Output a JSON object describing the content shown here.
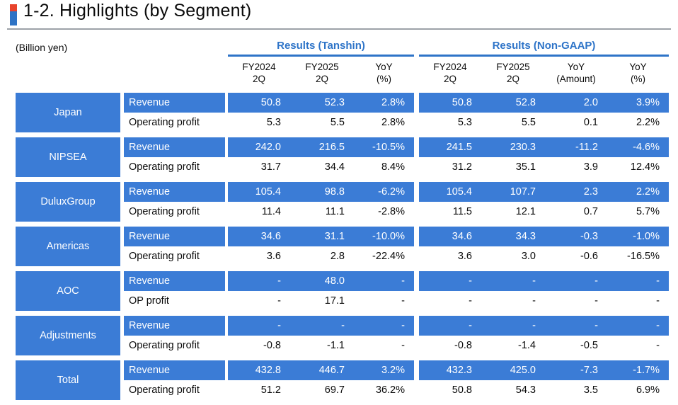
{
  "page": {
    "title": "1-2. Highlights (by Segment)",
    "unit_label": "(Billion yen)"
  },
  "colors": {
    "accent_blue": "#3B7CD6",
    "header_blue": "#2E74C8",
    "marker_red": "#E8432C",
    "marker_blue": "#2E73C5",
    "divider_gray": "#9DA2A8"
  },
  "table": {
    "groups": [
      {
        "id": "tanshin",
        "label": "Results (Tanshin)",
        "columns": [
          {
            "line1": "FY2024",
            "line2": "2Q"
          },
          {
            "line1": "FY2025",
            "line2": "2Q"
          },
          {
            "line1": "YoY",
            "line2": "(%)"
          }
        ]
      },
      {
        "id": "nongaap",
        "label": "Results (Non-GAAP)",
        "columns": [
          {
            "line1": "FY2024",
            "line2": "2Q"
          },
          {
            "line1": "FY2025",
            "line2": "2Q"
          },
          {
            "line1": "YoY",
            "line2": "(Amount)"
          },
          {
            "line1": "YoY",
            "line2": "(%)"
          }
        ]
      }
    ],
    "segments": [
      {
        "name": "Japan",
        "rows": [
          {
            "label": "Revenue",
            "highlight": true,
            "tanshin": [
              "50.8",
              "52.3",
              "2.8%"
            ],
            "nongaap": [
              "50.8",
              "52.8",
              "2.0",
              "3.9%"
            ]
          },
          {
            "label": "Operating profit",
            "highlight": false,
            "tanshin": [
              "5.3",
              "5.5",
              "2.8%"
            ],
            "nongaap": [
              "5.3",
              "5.5",
              "0.1",
              "2.2%"
            ]
          }
        ]
      },
      {
        "name": "NIPSEA",
        "rows": [
          {
            "label": "Revenue",
            "highlight": true,
            "tanshin": [
              "242.0",
              "216.5",
              "-10.5%"
            ],
            "nongaap": [
              "241.5",
              "230.3",
              "-11.2",
              "-4.6%"
            ]
          },
          {
            "label": "Operating profit",
            "highlight": false,
            "tanshin": [
              "31.7",
              "34.4",
              "8.4%"
            ],
            "nongaap": [
              "31.2",
              "35.1",
              "3.9",
              "12.4%"
            ]
          }
        ]
      },
      {
        "name": "DuluxGroup",
        "rows": [
          {
            "label": "Revenue",
            "highlight": true,
            "tanshin": [
              "105.4",
              "98.8",
              "-6.2%"
            ],
            "nongaap": [
              "105.4",
              "107.7",
              "2.3",
              "2.2%"
            ]
          },
          {
            "label": "Operating profit",
            "highlight": false,
            "tanshin": [
              "11.4",
              "11.1",
              "-2.8%"
            ],
            "nongaap": [
              "11.5",
              "12.1",
              "0.7",
              "5.7%"
            ]
          }
        ]
      },
      {
        "name": "Americas",
        "rows": [
          {
            "label": "Revenue",
            "highlight": true,
            "tanshin": [
              "34.6",
              "31.1",
              "-10.0%"
            ],
            "nongaap": [
              "34.6",
              "34.3",
              "-0.3",
              "-1.0%"
            ]
          },
          {
            "label": "Operating profit",
            "highlight": false,
            "tanshin": [
              "3.6",
              "2.8",
              "-22.4%"
            ],
            "nongaap": [
              "3.6",
              "3.0",
              "-0.6",
              "-16.5%"
            ]
          }
        ]
      },
      {
        "name": "AOC",
        "rows": [
          {
            "label": "Revenue",
            "highlight": true,
            "tanshin": [
              "-",
              "48.0",
              "-"
            ],
            "nongaap": [
              "-",
              "-",
              "-",
              "-"
            ]
          },
          {
            "label": "OP profit",
            "highlight": false,
            "tanshin": [
              "-",
              "17.1",
              "-"
            ],
            "nongaap": [
              "-",
              "-",
              "-",
              "-"
            ]
          }
        ]
      },
      {
        "name": "Adjustments",
        "rows": [
          {
            "label": "Revenue",
            "highlight": true,
            "tanshin": [
              "-",
              "-",
              "-"
            ],
            "nongaap": [
              "-",
              "-",
              "-",
              "-"
            ]
          },
          {
            "label": "Operating profit",
            "highlight": false,
            "tanshin": [
              "-0.8",
              "-1.1",
              "-"
            ],
            "nongaap": [
              "-0.8",
              "-1.4",
              "-0.5",
              "-"
            ]
          }
        ]
      },
      {
        "name": "Total",
        "rows": [
          {
            "label": "Revenue",
            "highlight": true,
            "tanshin": [
              "432.8",
              "446.7",
              "3.2%"
            ],
            "nongaap": [
              "432.3",
              "425.0",
              "-7.3",
              "-1.7%"
            ]
          },
          {
            "label": "Operating profit",
            "highlight": false,
            "tanshin": [
              "51.2",
              "69.7",
              "36.2%"
            ],
            "nongaap": [
              "50.8",
              "54.3",
              "3.5",
              "6.9%"
            ]
          }
        ]
      }
    ]
  }
}
